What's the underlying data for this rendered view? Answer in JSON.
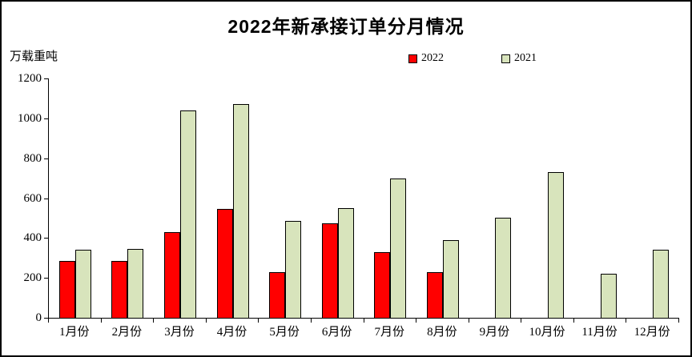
{
  "title": "2022年新承接订单分月情况",
  "y_axis_unit": "万载重吨",
  "chart_data": {
    "type": "bar",
    "title": "2022年新承接订单分月情况",
    "ylabel": "万载重吨",
    "xlabel": "",
    "ylim": [
      0,
      1200
    ],
    "yticks": [
      0,
      200,
      400,
      600,
      800,
      1000,
      1200
    ],
    "grid": false,
    "legend_position": "top",
    "categories": [
      "1月份",
      "2月份",
      "3月份",
      "4月份",
      "5月份",
      "6月份",
      "7月份",
      "8月份",
      "9月份",
      "10月份",
      "11月份",
      "12月份"
    ],
    "series": [
      {
        "name": "2022",
        "color": "#FF0000",
        "values": [
          285,
          285,
          430,
          545,
          230,
          475,
          330,
          230,
          0,
          0,
          0,
          0
        ]
      },
      {
        "name": "2021",
        "color": "#D8E4BC",
        "values": [
          340,
          345,
          1040,
          1070,
          485,
          550,
          700,
          390,
          500,
          730,
          220,
          340
        ]
      }
    ]
  }
}
